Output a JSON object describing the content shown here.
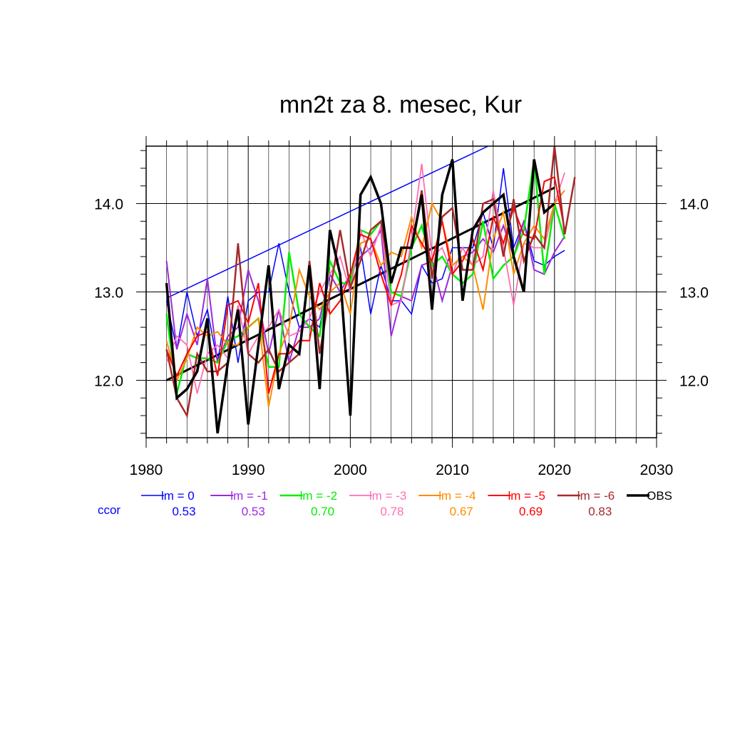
{
  "chart_data": {
    "type": "line",
    "title": "mn2t za 8. mesec, Kur",
    "xlim": [
      1980,
      2030
    ],
    "ylim": [
      11.35,
      14.65
    ],
    "x_ticks": [
      1980,
      1990,
      2000,
      2010,
      2020,
      2030
    ],
    "x_tick_labels": [
      "1980",
      "1990",
      "2000",
      "2010",
      "2020",
      "2030"
    ],
    "y_ticks": [
      12.0,
      13.0,
      14.0
    ],
    "y_tick_labels": [
      "12.0",
      "13.0",
      "14.0"
    ],
    "grid": true,
    "legend_position": "bottom",
    "ccor_label": "ccor",
    "series": [
      {
        "name": "lm = 0",
        "color": "#0000ff",
        "width": 1.5,
        "ccor": "0.53",
        "x0": 1982,
        "values": [
          12.9,
          12.35,
          13.0,
          12.5,
          12.8,
          12.2,
          12.95,
          12.2,
          12.9,
          13.0,
          13.0,
          13.55,
          13.0,
          12.6,
          12.7,
          12.6,
          13.2,
          13.0,
          13.2,
          13.5,
          12.75,
          13.3,
          12.9,
          12.9,
          12.75,
          13.3,
          13.1,
          13.15,
          13.5,
          13.5,
          13.5,
          13.9,
          13.5,
          14.4,
          13.5,
          13.8,
          13.35,
          13.3,
          13.4,
          13.47
        ]
      },
      {
        "name": "lm = -1",
        "color": "#9c2bdc",
        "width": 2,
        "ccor": "0.53",
        "x0": 1982,
        "values": [
          13.35,
          12.35,
          12.75,
          12.4,
          13.15,
          12.2,
          12.5,
          12.6,
          13.25,
          12.9,
          12.3,
          12.8,
          12.2,
          12.6,
          12.6,
          12.7,
          13.2,
          13.0,
          13.2,
          13.4,
          13.5,
          13.7,
          12.5,
          12.95,
          12.9,
          13.3,
          13.35,
          12.9,
          13.3,
          13.4,
          13.45,
          13.6,
          13.45,
          13.75,
          13.4,
          13.8,
          13.25,
          13.2,
          13.45,
          13.63
        ]
      },
      {
        "name": "lm = -2",
        "color": "#00ee00",
        "width": 2.5,
        "ccor": "0.70",
        "x0": 1982,
        "values": [
          12.75,
          11.85,
          12.3,
          12.25,
          12.25,
          12.2,
          12.45,
          12.5,
          12.6,
          12.7,
          12.15,
          12.15,
          13.45,
          12.75,
          12.6,
          12.5,
          13.35,
          13.1,
          13.1,
          13.7,
          13.65,
          13.8,
          13.0,
          12.95,
          13.5,
          13.75,
          13.3,
          13.4,
          13.2,
          13.1,
          13.2,
          13.8,
          13.15,
          13.3,
          13.4,
          13.7,
          14.5,
          13.2,
          14.0,
          13.6
        ]
      },
      {
        "name": "lm = -3",
        "color": "#ff6eb4",
        "width": 1.8,
        "ccor": "0.78",
        "x0": 1982,
        "values": [
          12.2,
          12.5,
          12.4,
          11.85,
          12.3,
          12.4,
          12.25,
          12.85,
          12.3,
          12.5,
          12.6,
          12.8,
          12.5,
          12.55,
          12.7,
          13.0,
          13.2,
          13.4,
          13.0,
          13.7,
          13.4,
          13.75,
          12.85,
          12.9,
          13.6,
          14.45,
          13.4,
          13.5,
          13.2,
          13.5,
          13.3,
          13.4,
          14.15,
          13.5,
          12.85,
          13.55,
          13.5,
          13.5,
          14.0,
          14.35
        ]
      },
      {
        "name": "lm = -4",
        "color": "#ff8c00",
        "width": 2,
        "ccor": "0.67",
        "x0": 1982,
        "values": [
          12.45,
          12.0,
          12.25,
          12.6,
          12.5,
          12.55,
          12.4,
          12.4,
          12.6,
          12.7,
          11.7,
          12.3,
          12.6,
          13.25,
          12.95,
          12.8,
          13.0,
          13.1,
          12.75,
          13.55,
          13.6,
          13.3,
          13.45,
          13.4,
          13.85,
          13.5,
          14.0,
          13.8,
          13.3,
          13.4,
          13.3,
          12.8,
          13.6,
          13.9,
          13.2,
          13.55,
          13.75,
          13.6,
          14.0,
          14.15
        ]
      },
      {
        "name": "lm = -5",
        "color": "#ff0000",
        "width": 2,
        "ccor": "0.69",
        "x0": 1982,
        "values": [
          12.35,
          12.05,
          12.3,
          12.5,
          12.55,
          12.05,
          12.85,
          12.9,
          12.65,
          13.1,
          11.85,
          12.3,
          12.3,
          12.45,
          12.45,
          13.1,
          12.75,
          12.9,
          13.2,
          13.65,
          13.6,
          13.2,
          12.85,
          13.2,
          13.75,
          13.55,
          13.35,
          13.8,
          13.2,
          13.35,
          13.6,
          13.25,
          13.85,
          13.55,
          13.95,
          13.65,
          13.6,
          14.25,
          14.3,
          13.7
        ]
      },
      {
        "name": "lm = -6",
        "color": "#a52a2a",
        "width": 2.5,
        "ccor": "0.83",
        "x0": 1982,
        "values": [
          12.35,
          11.8,
          11.6,
          12.3,
          12.1,
          12.1,
          12.2,
          13.55,
          12.3,
          12.2,
          12.35,
          12.1,
          12.2,
          12.3,
          13.35,
          12.3,
          13.0,
          13.7,
          13.05,
          13.35,
          13.7,
          13.8,
          13.1,
          13.5,
          13.5,
          14.15,
          13.15,
          13.85,
          13.95,
          13.25,
          13.25,
          14.0,
          14.05,
          13.4,
          14.05,
          13.35,
          13.65,
          13.5,
          14.65,
          13.65,
          14.3
        ]
      },
      {
        "name": "OBS",
        "color": "#000000",
        "width": 3.5,
        "ccor": "",
        "x0": 1982,
        "values": [
          13.1,
          11.8,
          11.9,
          12.1,
          12.7,
          11.4,
          12.2,
          12.8,
          11.5,
          12.4,
          13.3,
          11.9,
          12.4,
          12.3,
          13.3,
          11.9,
          13.7,
          13.2,
          11.6,
          14.1,
          14.3,
          14.0,
          13.1,
          13.5,
          13.5,
          14.1,
          12.8,
          14.1,
          14.5,
          12.9,
          13.7,
          13.9,
          14.0,
          14.1,
          13.4,
          13.0,
          14.5,
          13.9,
          14.0
        ]
      }
    ],
    "trend_lines": [
      {
        "name": "obs-trend",
        "color": "#000000",
        "width": 3,
        "x": [
          1982,
          2020
        ],
        "y": [
          12.0,
          14.18
        ]
      },
      {
        "name": "upper-trend",
        "color": "#0000ff",
        "width": 1.5,
        "x": [
          1982,
          2013.5
        ],
        "y": [
          12.93,
          14.65
        ]
      }
    ]
  }
}
